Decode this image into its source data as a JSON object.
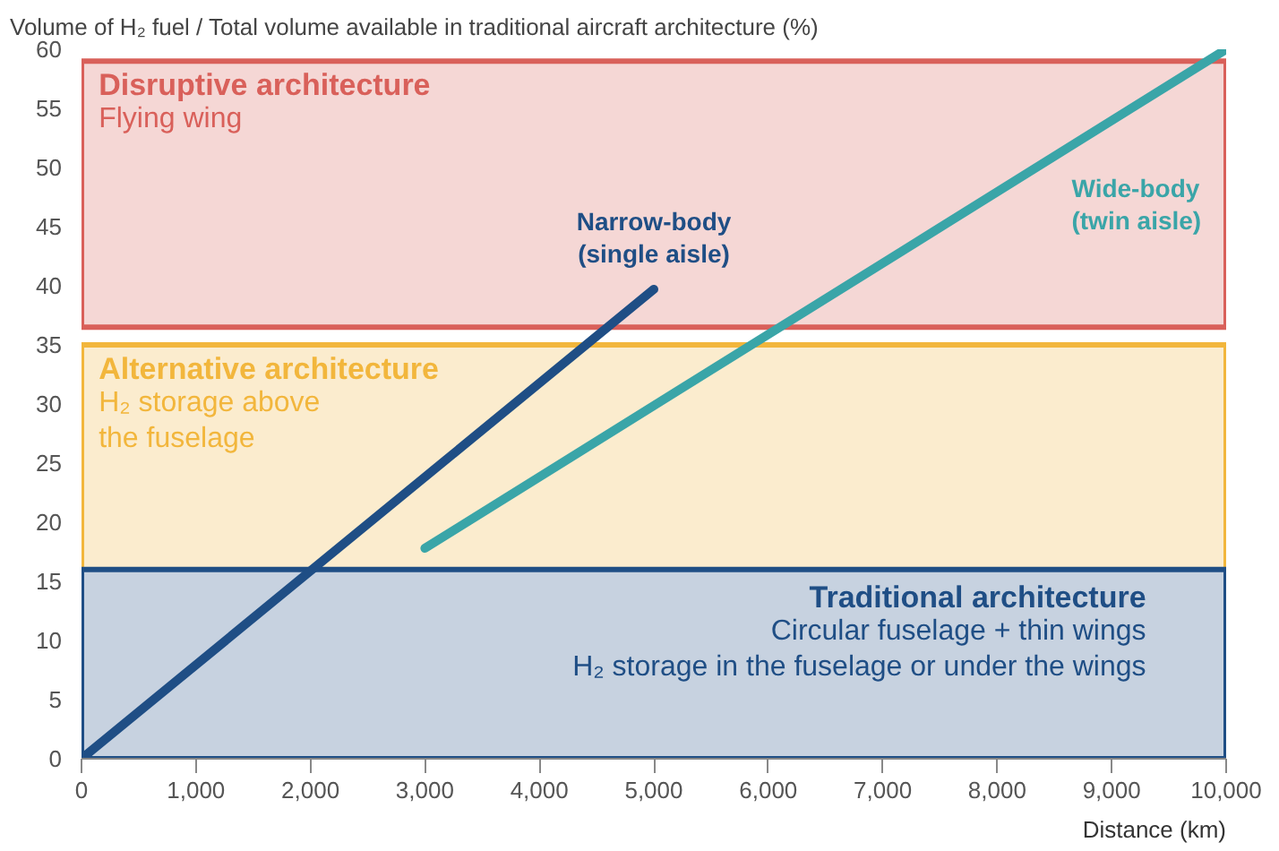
{
  "chart_data": {
    "type": "line",
    "ylabel": "Volume of H₂ fuel / Total volume available in traditional aircraft architecture (%)",
    "xlabel": "Distance (km)",
    "xlim": [
      0,
      10000
    ],
    "ylim": [
      0,
      60
    ],
    "xticks": [
      0,
      {
        "value": 1000,
        "label": "1,000"
      },
      {
        "value": 2000,
        "label": "2,000"
      },
      {
        "value": 3000,
        "label": "3,000"
      },
      {
        "value": 4000,
        "label": "4,000"
      },
      {
        "value": 5000,
        "label": "5,000"
      },
      {
        "value": 6000,
        "label": "6,000"
      },
      {
        "value": 7000,
        "label": "7,000"
      },
      {
        "value": 8000,
        "label": "8,000"
      },
      {
        "value": 9000,
        "label": "9,000"
      },
      {
        "value": 10000,
        "label": "10,000"
      }
    ],
    "yticks": [
      0,
      5,
      10,
      15,
      20,
      25,
      30,
      35,
      40,
      45,
      50,
      55,
      60
    ],
    "marker": "none",
    "line_style": "solid",
    "bands": [
      {
        "axis": "y",
        "from": 36.5,
        "to": 59,
        "label": "Disruptive architecture\nFlying wing",
        "color": "#d9605a"
      },
      {
        "axis": "y",
        "from": 0,
        "to": 35,
        "label": "Alternative architecture\nH₂ storage above\nthe fuselage",
        "color": "#f2b63c"
      },
      {
        "axis": "y",
        "from": 0,
        "to": 16,
        "label": "Traditional architecture\nCircular fuselage + thin wings\nH₂ storage in the fuselage or under the wings",
        "color": "#1f4e85"
      }
    ],
    "series": [
      {
        "name": "Narrow-body\n(single aisle)",
        "color": "#1f4e85",
        "x": [
          0,
          5000
        ],
        "values": [
          0,
          39.7
        ]
      },
      {
        "name": "Wide-body\n(twin aisle)",
        "color": "#3aa5a8",
        "x": [
          3000,
          10000
        ],
        "values": [
          17.8,
          60
        ]
      }
    ]
  }
}
